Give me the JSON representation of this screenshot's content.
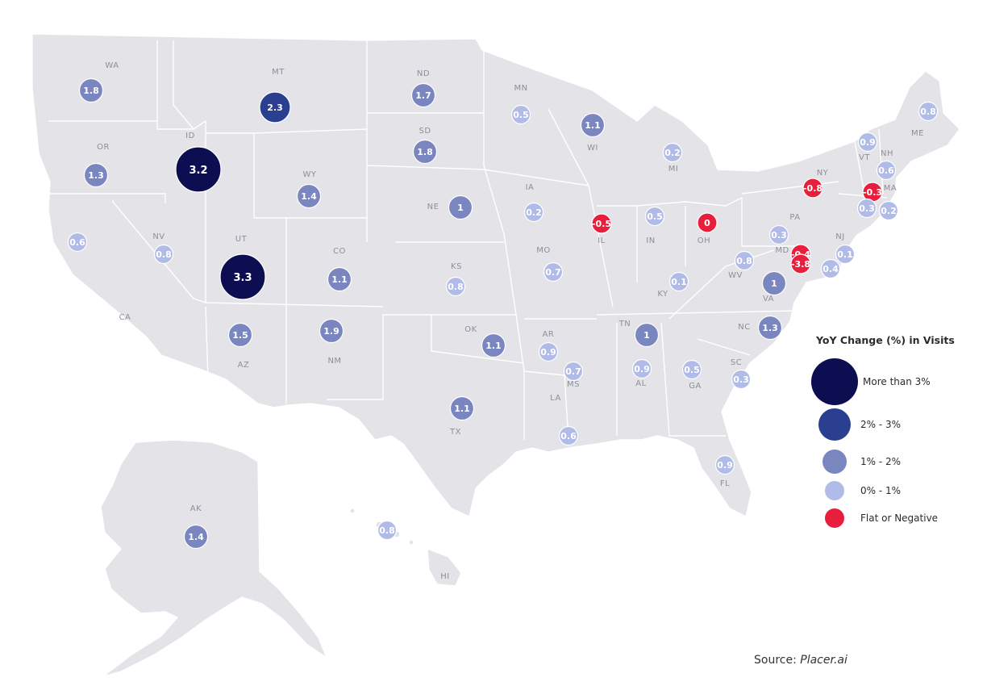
{
  "colors": {
    "more_than_3": "#0d0e52",
    "two_to_3": "#2a3f8f",
    "one_to_2": "#7a86bf",
    "zero_to_1": "#b1bbe8",
    "flat_or_negative": "#e81f3c",
    "land": "#e3e3e8"
  },
  "legend": {
    "title": "YoY Change (%) in Visits",
    "items": [
      {
        "label": "More than 3%",
        "color": "#0d0e52"
      },
      {
        "label": "2% - 3%",
        "color": "#2a3f8f"
      },
      {
        "label": "1% - 2%",
        "color": "#7a86bf"
      },
      {
        "label": "0% - 1%",
        "color": "#b1bbe8"
      },
      {
        "label": "Flat or Negative",
        "color": "#e81f3c"
      }
    ]
  },
  "source": {
    "prefix": "Source: ",
    "name": "Placer.ai"
  },
  "states": [
    {
      "abbr": "WA",
      "value": 1.8
    },
    {
      "abbr": "OR",
      "value": 1.3
    },
    {
      "abbr": "CA",
      "value": 0.6
    },
    {
      "abbr": "NV",
      "value": 0.8
    },
    {
      "abbr": "ID",
      "value": 3.2
    },
    {
      "abbr": "MT",
      "value": 2.3
    },
    {
      "abbr": "WY",
      "value": 1.4
    },
    {
      "abbr": "UT",
      "value": 3.3
    },
    {
      "abbr": "CO",
      "value": 1.1
    },
    {
      "abbr": "AZ",
      "value": 1.5
    },
    {
      "abbr": "NM",
      "value": 1.9
    },
    {
      "abbr": "ND",
      "value": 1.7
    },
    {
      "abbr": "SD",
      "value": 1.8
    },
    {
      "abbr": "NE",
      "value": 1
    },
    {
      "abbr": "KS",
      "value": 0.8
    },
    {
      "abbr": "OK",
      "value": 1.1
    },
    {
      "abbr": "TX",
      "value": 1.1
    },
    {
      "abbr": "MN",
      "value": 0.5
    },
    {
      "abbr": "IA",
      "value": 0.2
    },
    {
      "abbr": "MO",
      "value": 0.7
    },
    {
      "abbr": "AR",
      "value": 0.9
    },
    {
      "abbr": "LA",
      "value": 0.6
    },
    {
      "abbr": "WI",
      "value": 1.1
    },
    {
      "abbr": "IL",
      "value": -0.5
    },
    {
      "abbr": "MI",
      "value": 0.2
    },
    {
      "abbr": "IN",
      "value": 0.5
    },
    {
      "abbr": "OH",
      "value": 0
    },
    {
      "abbr": "KY",
      "value": 0.1
    },
    {
      "abbr": "TN",
      "value": 1
    },
    {
      "abbr": "MS",
      "value": 0.7
    },
    {
      "abbr": "AL",
      "value": 0.9
    },
    {
      "abbr": "GA",
      "value": 0.5
    },
    {
      "abbr": "FL",
      "value": 0.9
    },
    {
      "abbr": "SC",
      "value": 0.3
    },
    {
      "abbr": "NC",
      "value": 1.3
    },
    {
      "abbr": "VA",
      "value": 1
    },
    {
      "abbr": "WV",
      "value": 0.8
    },
    {
      "abbr": "PA",
      "value": 0.3
    },
    {
      "abbr": "NY",
      "value": -0.8
    },
    {
      "abbr": "VT",
      "value": 0.9
    },
    {
      "abbr": "NH",
      "value": 0.6
    },
    {
      "abbr": "ME",
      "value": 0.8
    },
    {
      "abbr": "MA",
      "value": -0.3
    },
    {
      "abbr": "RI",
      "value": 0.2
    },
    {
      "abbr": "CT",
      "value": 0.3
    },
    {
      "abbr": "NJ",
      "value": 0.1
    },
    {
      "abbr": "DE",
      "value": 0.4
    },
    {
      "abbr": "MD",
      "value": -0.4
    },
    {
      "abbr": "DC",
      "value": -3.8
    },
    {
      "abbr": "AK",
      "value": 1.4
    },
    {
      "abbr": "HI",
      "value": 0.8
    }
  ]
}
